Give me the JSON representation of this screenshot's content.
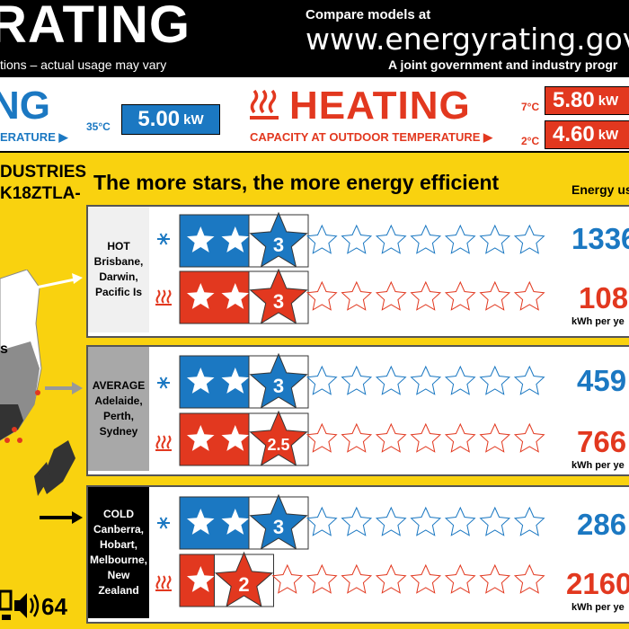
{
  "header": {
    "title": "RATING",
    "subtitle": "tions – actual usage may vary",
    "compare_label": "Compare models at",
    "url": "www.energyrating.gov.au",
    "joint_label": "A joint government and industry progr"
  },
  "capacity": {
    "cooling_word": "NG",
    "cooling_caption": "ERATURE",
    "cooling_temp": "35°C",
    "cooling_kw": "5.00",
    "heating_word": "HEATING",
    "heating_caption": "CAPACITY AT OUTDOOR TEMPERATURE",
    "heating_temp_1": "7°C",
    "heating_kw_1": "5.80",
    "heating_temp_2": "2°C",
    "heating_kw_2": "4.60",
    "unit": "kW"
  },
  "brand": {
    "line1": "DUSTRIES",
    "line2": "K18ZTLA-"
  },
  "headline": "The more stars, the more energy efficient",
  "energy_use_label": "Energy us",
  "kwh_label": "kWh per ye",
  "zones": [
    {
      "name": "HOT",
      "places": "Brisbane, Darwin, Pacific Is",
      "cool_stars": 3,
      "heat_stars": 3,
      "cool_badge": "3",
      "heat_badge": "3",
      "cool_kwh": "1336",
      "heat_kwh": "108"
    },
    {
      "name": "AVERAGE",
      "places": "Adelaide, Perth, Sydney",
      "cool_stars": 3,
      "heat_stars": 2.5,
      "cool_badge": "3",
      "heat_badge": "2.5",
      "cool_kwh": "459",
      "heat_kwh": "766"
    },
    {
      "name": "COLD",
      "places": "Canberra, Hobart, Melbourne, New Zealand",
      "cool_stars": 3,
      "heat_stars": 2,
      "cool_badge": "3",
      "heat_badge": "2",
      "cool_kwh": "286",
      "heat_kwh": "2160"
    }
  ],
  "noise_value": "64",
  "colors": {
    "cooling": "#1b78c2",
    "heating": "#e2381f",
    "background": "#f9d20f"
  },
  "icons": {
    "cooling": "snowflake-icon",
    "heating": "heat-waves-icon",
    "noise": "speaker-icon"
  }
}
